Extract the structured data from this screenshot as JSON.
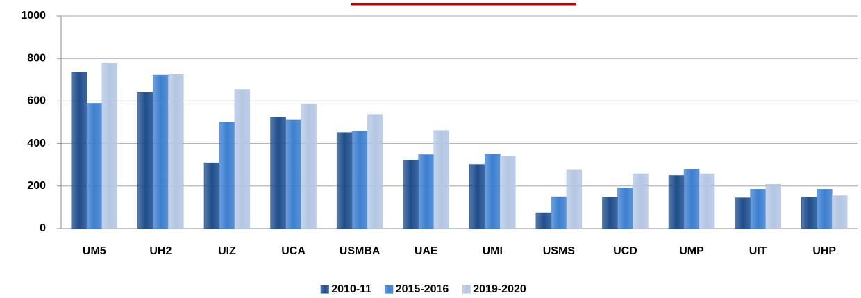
{
  "chart_data": {
    "type": "bar",
    "categories": [
      "UM5",
      "UH2",
      "UIZ",
      "UCA",
      "USMBA",
      "UAE",
      "UMI",
      "USMS",
      "UCD",
      "UMP",
      "UIT",
      "UHP"
    ],
    "series": [
      {
        "name": "2010-11",
        "color": "#1f4e8c",
        "values": [
          735,
          640,
          310,
          525,
          452,
          322,
          302,
          75,
          148,
          250,
          145,
          148
        ]
      },
      {
        "name": "2015-2016",
        "color": "#3d7fd0",
        "values": [
          590,
          722,
          500,
          510,
          458,
          348,
          352,
          150,
          192,
          280,
          185,
          185
        ]
      },
      {
        "name": "2019-2020",
        "color": "#b3c6e2",
        "values": [
          780,
          725,
          655,
          588,
          537,
          462,
          342,
          275,
          258,
          258,
          208,
          155
        ]
      }
    ],
    "ylim": [
      0,
      1000
    ],
    "yticks": [
      0,
      200,
      400,
      600,
      800,
      1000
    ],
    "grid": true,
    "legend": "bottom"
  }
}
